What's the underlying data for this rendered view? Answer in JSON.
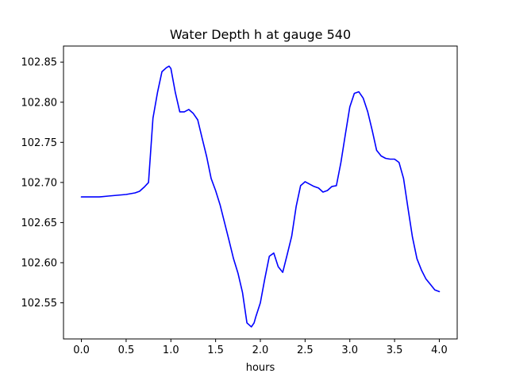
{
  "chart_data": {
    "type": "line",
    "title": "Water Depth h at gauge 540",
    "xlabel": "hours",
    "ylabel": "",
    "xlim": [
      -0.2,
      4.2
    ],
    "ylim": [
      102.505,
      102.87
    ],
    "xticks": [
      0.0,
      0.5,
      1.0,
      1.5,
      2.0,
      2.5,
      3.0,
      3.5,
      4.0
    ],
    "xtick_labels": [
      "0.0",
      "0.5",
      "1.0",
      "1.5",
      "2.0",
      "2.5",
      "3.0",
      "3.5",
      "4.0"
    ],
    "yticks": [
      102.55,
      102.6,
      102.65,
      102.7,
      102.75,
      102.8,
      102.85
    ],
    "ytick_labels": [
      "102.55",
      "102.60",
      "102.65",
      "102.70",
      "102.75",
      "102.80",
      "102.85"
    ],
    "grid": false,
    "legend": "none",
    "series": [
      {
        "color": "#0000ff",
        "x": [
          0.0,
          0.1,
          0.2,
          0.3,
          0.4,
          0.5,
          0.6,
          0.65,
          0.7,
          0.75,
          0.8,
          0.85,
          0.9,
          0.95,
          0.98,
          1.0,
          1.05,
          1.1,
          1.15,
          1.2,
          1.25,
          1.3,
          1.35,
          1.4,
          1.45,
          1.5,
          1.55,
          1.6,
          1.65,
          1.7,
          1.75,
          1.8,
          1.85,
          1.9,
          1.93,
          1.95,
          2.0,
          2.05,
          2.1,
          2.15,
          2.2,
          2.25,
          2.3,
          2.35,
          2.4,
          2.45,
          2.5,
          2.55,
          2.6,
          2.65,
          2.7,
          2.75,
          2.8,
          2.85,
          2.9,
          2.95,
          3.0,
          3.05,
          3.1,
          3.15,
          3.2,
          3.25,
          3.3,
          3.35,
          3.4,
          3.45,
          3.5,
          3.55,
          3.6,
          3.65,
          3.7,
          3.75,
          3.8,
          3.85,
          3.9,
          3.95,
          4.0
        ],
        "y": [
          102.682,
          102.682,
          102.682,
          102.683,
          102.684,
          102.685,
          102.687,
          102.689,
          102.694,
          102.7,
          102.78,
          102.812,
          102.838,
          102.843,
          102.845,
          102.842,
          102.812,
          102.788,
          102.788,
          102.791,
          102.786,
          102.778,
          102.755,
          102.732,
          102.705,
          102.69,
          102.672,
          102.65,
          102.628,
          102.605,
          102.587,
          102.563,
          102.525,
          102.52,
          102.525,
          102.533,
          102.55,
          102.58,
          102.608,
          102.612,
          102.595,
          102.588,
          102.61,
          102.633,
          102.67,
          102.696,
          102.701,
          102.698,
          102.695,
          102.693,
          102.688,
          102.69,
          102.695,
          102.696,
          102.725,
          102.76,
          102.794,
          102.811,
          102.813,
          102.805,
          102.788,
          102.765,
          102.74,
          102.733,
          102.73,
          102.729,
          102.729,
          102.725,
          102.705,
          102.668,
          102.632,
          102.605,
          102.591,
          102.58,
          102.573,
          102.566,
          102.564
        ]
      }
    ]
  }
}
